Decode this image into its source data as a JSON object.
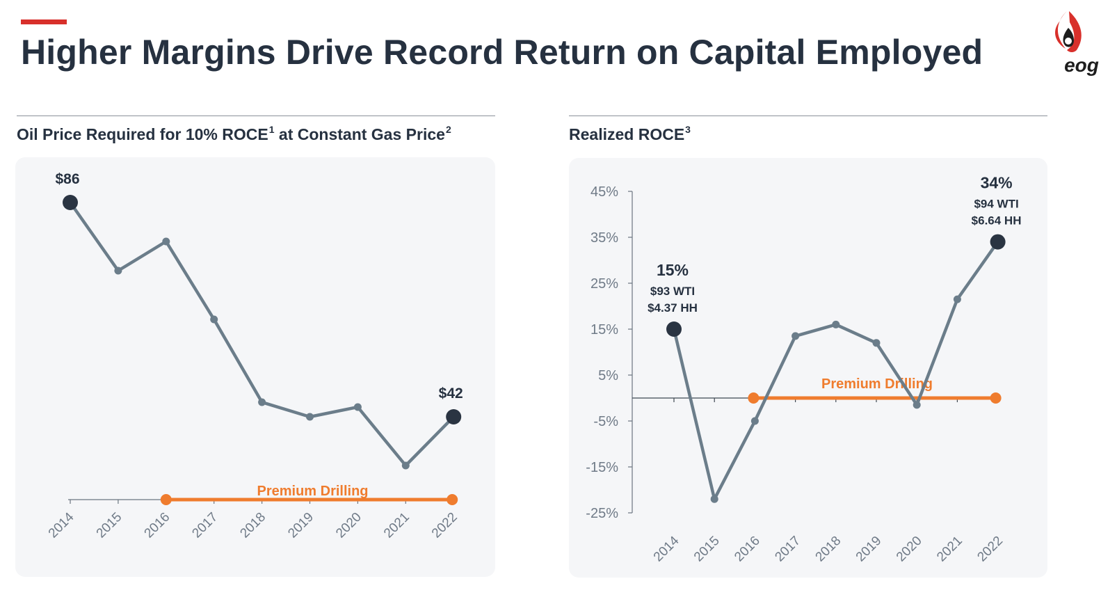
{
  "header": {
    "title": "Higher Margins Drive Record Return on Capital Employed",
    "accent_color": "#d8302b",
    "logo_icon": "eog-flame-icon",
    "logo_text": "eog"
  },
  "colors": {
    "series_line": "#6b7d8a",
    "endpoint_marker": "#2a3442",
    "premium_drilling": "#ef7c2e",
    "card_background": "#f5f6f8",
    "axis": "#6b7580"
  },
  "left_panel": {
    "heading": "Oil Price Required for 10% ROCE",
    "heading_sup1": "1",
    "heading_mid": " at Constant Gas Price",
    "heading_sup2": "2"
  },
  "right_panel": {
    "heading": "Realized ROCE",
    "heading_sup": "3"
  },
  "chart_data": [
    {
      "type": "line",
      "x": [
        "2014",
        "2015",
        "2016",
        "2017",
        "2018",
        "2019",
        "2020",
        "2021",
        "2022"
      ],
      "values": [
        86,
        72,
        78,
        62,
        45,
        42,
        44,
        32,
        42
      ],
      "value_labels": [
        {
          "x": "2014",
          "text": "$86"
        },
        {
          "x": "2022",
          "text": "$42"
        }
      ],
      "premium_drilling": {
        "label": "Premium Drilling",
        "from": "2016",
        "to": "2022"
      },
      "grid": false
    },
    {
      "type": "line",
      "x": [
        "2014",
        "2015",
        "2016",
        "2017",
        "2018",
        "2019",
        "2020",
        "2021",
        "2022"
      ],
      "values": [
        15,
        -22,
        -5,
        13.5,
        16,
        12,
        -1.5,
        21.5,
        34
      ],
      "ylim": [
        -25,
        45
      ],
      "yticks": [
        "45%",
        "35%",
        "25%",
        "15%",
        "5%",
        "-5%",
        "-15%",
        "-25%"
      ],
      "callouts": [
        {
          "x": "2014",
          "value": "15%",
          "lines": [
            "$93 WTI",
            "$4.37 HH"
          ]
        },
        {
          "x": "2022",
          "value": "34%",
          "lines": [
            "$94 WTI",
            "$6.64 HH"
          ]
        }
      ],
      "premium_drilling": {
        "label": "Premium Drilling",
        "from": "2016",
        "to": "2022"
      },
      "grid": false
    }
  ]
}
